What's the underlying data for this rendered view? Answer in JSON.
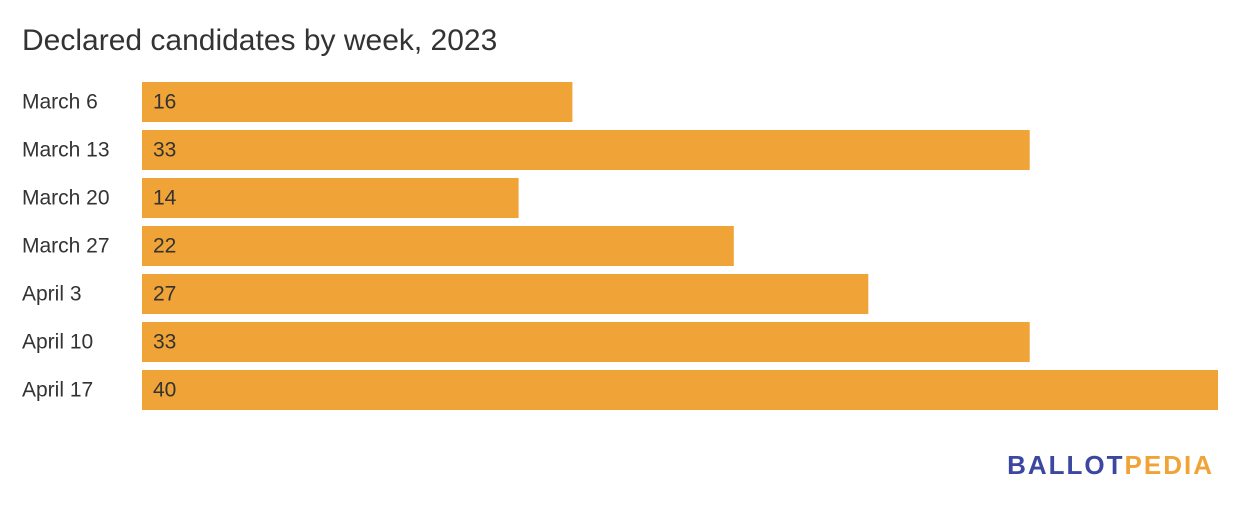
{
  "chart_data": {
    "type": "bar",
    "orientation": "horizontal",
    "title": "Declared candidates by week, 2023",
    "categories": [
      "March 6",
      "March 13",
      "March 20",
      "March 27",
      "April 3",
      "April 10",
      "April 17"
    ],
    "values": [
      16,
      33,
      14,
      22,
      27,
      33,
      40
    ],
    "color": "#f0a336",
    "logo": [
      {
        "text": "BALLOT",
        "color": "#3b47a0"
      },
      {
        "text": "PEDIA",
        "color": "#f0a336"
      }
    ]
  }
}
